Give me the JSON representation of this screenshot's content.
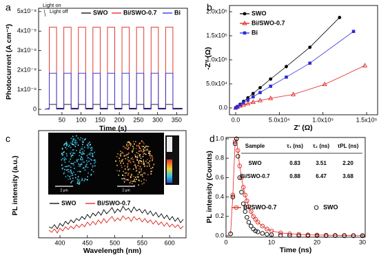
{
  "chart_data": [
    {
      "type": "line",
      "label": "a",
      "xlabel": "Time (s)",
      "ylabel": "Photocurrent (A cm⁻²)",
      "annotations": [
        "Light on",
        "Light off"
      ],
      "x": [
        6,
        17,
        17,
        36,
        36,
        55,
        55,
        74,
        74,
        93,
        93,
        112,
        112,
        131,
        131,
        150,
        150,
        169,
        169,
        188,
        188,
        207,
        207,
        226,
        226,
        245,
        245,
        264,
        264,
        283,
        283,
        302,
        302,
        321,
        321,
        340,
        340,
        365
      ],
      "series": [
        {
          "name": "SWO",
          "color": "#000000",
          "values": [
            0,
            5e-10,
            2.5e-09,
            2.5e-09,
            5e-10,
            5e-10,
            2.5e-09,
            2.5e-09,
            5e-10,
            5e-10,
            2.5e-09,
            2.5e-09,
            5e-10,
            5e-10,
            2.5e-09,
            2.5e-09,
            5e-10,
            5e-10,
            2.5e-09,
            2.5e-09,
            5e-10,
            5e-10,
            2.5e-09,
            2.5e-09,
            5e-10,
            5e-10,
            2.5e-09,
            2.5e-09,
            5e-10,
            5e-10,
            2.5e-09,
            2.5e-09,
            5e-10,
            5e-10,
            2.5e-09,
            2.5e-09,
            5e-10,
            5e-10
          ]
        },
        {
          "name": "Bi/SWO-0.7",
          "color": "#e0201b",
          "values": [
            2e-10,
            2e-10,
            4.2e-08,
            4.2e-08,
            2e-10,
            2e-10,
            4.2e-08,
            4.2e-08,
            2e-10,
            2e-10,
            4.2e-08,
            4.2e-08,
            2e-10,
            2e-10,
            4.2e-08,
            4.2e-08,
            2e-10,
            2e-10,
            4.2e-08,
            4.2e-08,
            2e-10,
            2e-10,
            4.2e-08,
            4.2e-08,
            2e-10,
            2e-10,
            4.2e-08,
            4.2e-08,
            2e-10,
            2e-10,
            4.2e-08,
            4.2e-08,
            2e-10,
            2e-10,
            4.2e-08,
            4.2e-08,
            2e-10,
            2e-10
          ]
        },
        {
          "name": "Bi",
          "color": "#2b2bd9",
          "values": [
            1e-10,
            1e-10,
            1.85e-08,
            1.85e-08,
            1e-10,
            1e-10,
            1.85e-08,
            1.85e-08,
            1e-10,
            1e-10,
            1.85e-08,
            1.85e-08,
            1e-10,
            1e-10,
            1.85e-08,
            1.85e-08,
            1e-10,
            1e-10,
            1.85e-08,
            1.85e-08,
            1e-10,
            1e-10,
            1.85e-08,
            1.85e-08,
            1e-10,
            1e-10,
            1.85e-08,
            1.85e-08,
            1e-10,
            1e-10,
            1.85e-08,
            1.85e-08,
            1e-10,
            1e-10,
            1.85e-08,
            1.85e-08,
            1e-10,
            1e-10
          ]
        }
      ],
      "xlim": [
        -11,
        378
      ],
      "xticks": [
        50,
        100,
        150,
        200,
        250,
        300,
        350
      ],
      "ylim": [
        -2.8e-09,
        5.17e-08
      ],
      "yticks": [
        0,
        {
          "value": 1e-08,
          "label": "1x10⁻⁸"
        },
        {
          "value": 2e-08,
          "label": "2x10⁻⁸"
        },
        {
          "value": 3e-08,
          "label": "3x10⁻⁸"
        },
        {
          "value": 4e-08,
          "label": "4x10⁻⁸"
        },
        {
          "value": 5e-08,
          "label": "5x10⁻⁸"
        }
      ]
    },
    {
      "type": "scatter",
      "label": "b",
      "xlabel": "Z' (Ω)",
      "ylabel": "-Z'' (Ω)",
      "series": [
        {
          "name": "SWO",
          "color": "#000000",
          "marker": "circle",
          "x": [
            0,
            2000,
            5000,
            9000,
            14000,
            20000,
            28000,
            40000,
            58000,
            85000,
            119000
          ],
          "values": [
            0,
            3000,
            7500,
            13500,
            21000,
            30000,
            42000,
            60000,
            86000,
            126000,
            188000
          ]
        },
        {
          "name": "Bi/SWO-0.7",
          "color": "#e0201b",
          "marker": "triangle",
          "x": [
            0,
            2000,
            5000,
            9000,
            14000,
            20000,
            28000,
            40000,
            66000,
            102000,
            148000
          ],
          "values": [
            0,
            2000,
            4000,
            6500,
            9000,
            12000,
            15500,
            20000,
            28000,
            49000,
            88000
          ]
        },
        {
          "name": "Bi",
          "color": "#2b2bd9",
          "marker": "square",
          "x": [
            0,
            2000,
            5000,
            9000,
            14000,
            20000,
            28000,
            40000,
            58000,
            85000,
            135000
          ],
          "values": [
            0,
            2500,
            6000,
            11000,
            16500,
            23000,
            32000,
            45000,
            64000,
            93000,
            159000
          ]
        }
      ],
      "xlim": [
        -7100,
        162600
      ],
      "xticks": [
        {
          "value": 0,
          "label": "0.0"
        },
        {
          "value": 50000,
          "label": "5.0x10⁴"
        },
        {
          "value": 100000,
          "label": "1.0x10⁵"
        },
        {
          "value": 150000,
          "label": "1.5x10⁵"
        }
      ],
      "ylim": [
        -14300,
        212900
      ],
      "yticks": [
        {
          "value": 0,
          "label": "0.0"
        },
        {
          "value": 50000,
          "label": "5.0x10⁴"
        },
        {
          "value": 100000,
          "label": "1.0x10⁵"
        },
        {
          "value": 150000,
          "label": "1.5x10⁵"
        },
        {
          "value": 200000,
          "label": "2.0x10⁵"
        }
      ]
    },
    {
      "type": "line",
      "label": "c",
      "xlabel": "Wavelength (nm)",
      "ylabel": "PL intensity (a.u.)",
      "inset_labels": [
        "2 μm",
        "2 μm"
      ],
      "x": [
        380,
        385,
        390,
        395,
        400,
        405,
        410,
        415,
        420,
        425,
        430,
        435,
        440,
        445,
        450,
        455,
        460,
        465,
        470,
        475,
        480,
        485,
        490,
        495,
        500,
        505,
        510,
        515,
        520,
        525,
        530,
        535,
        540,
        545,
        550,
        555,
        560,
        565,
        570,
        575,
        580,
        585,
        590,
        595,
        600,
        605,
        610,
        615,
        620,
        625
      ],
      "series": [
        {
          "name": "SWO",
          "color": "#000000",
          "values": [
            0.3,
            0.28,
            0.33,
            0.27,
            0.35,
            0.31,
            0.38,
            0.34,
            0.4,
            0.36,
            0.42,
            0.39,
            0.45,
            0.41,
            0.48,
            0.43,
            0.5,
            0.46,
            0.52,
            0.47,
            0.55,
            0.49,
            0.53,
            0.58,
            0.5,
            0.56,
            0.52,
            0.6,
            0.54,
            0.57,
            0.51,
            0.59,
            0.53,
            0.56,
            0.5,
            0.55,
            0.48,
            0.53,
            0.46,
            0.51,
            0.44,
            0.49,
            0.42,
            0.47,
            0.4,
            0.45,
            0.38,
            0.43,
            0.36,
            0.41
          ]
        },
        {
          "name": "Bi/SWO-0.7",
          "color": "#e0201b",
          "values": [
            0.25,
            0.22,
            0.27,
            0.21,
            0.28,
            0.24,
            0.3,
            0.26,
            0.31,
            0.27,
            0.33,
            0.29,
            0.34,
            0.3,
            0.37,
            0.32,
            0.38,
            0.33,
            0.4,
            0.35,
            0.42,
            0.36,
            0.41,
            0.45,
            0.38,
            0.43,
            0.39,
            0.46,
            0.41,
            0.44,
            0.38,
            0.45,
            0.4,
            0.43,
            0.37,
            0.42,
            0.36,
            0.4,
            0.34,
            0.39,
            0.33,
            0.37,
            0.31,
            0.36,
            0.3,
            0.34,
            0.29,
            0.33,
            0.27,
            0.31
          ]
        }
      ],
      "xlim": [
        361,
        630
      ],
      "xticks": [
        400,
        450,
        500,
        550,
        600
      ],
      "ylim": [
        0.14,
        1.7
      ]
    },
    {
      "type": "scatter",
      "label": "d",
      "xlabel": "Time (ns)",
      "ylabel": "PL intensity (Counts)",
      "x": [
        1.0,
        1.5,
        2.0,
        2.3,
        2.6,
        3.0,
        3.4,
        3.8,
        4.2,
        4.6,
        5.0,
        5.5,
        6,
        6.5,
        7,
        8,
        9,
        10,
        12,
        14,
        16,
        18,
        20,
        22,
        24,
        26,
        28,
        30
      ],
      "series": [
        {
          "name": "Bi/SWO-0.7",
          "color": "#e0201b",
          "marker": "open-circle",
          "line": true,
          "values": [
            0.02,
            0.42,
            0.97,
            1.0,
            0.88,
            0.72,
            0.6,
            0.5,
            0.42,
            0.36,
            0.3,
            0.25,
            0.2,
            0.17,
            0.14,
            0.1,
            0.07,
            0.05,
            0.03,
            0.02,
            0.015,
            0.01,
            0.008,
            0.006,
            0.005,
            0.004,
            0.003,
            0.003
          ]
        },
        {
          "name": "SWO",
          "color": "#000000",
          "marker": "open-circle",
          "values": [
            0.02,
            0.4,
            0.95,
            1.0,
            0.82,
            0.6,
            0.45,
            0.33,
            0.25,
            0.19,
            0.14,
            0.1,
            0.07,
            0.05,
            0.04,
            0.025,
            0.015,
            0.01,
            0.005,
            0.003,
            0.002,
            0.002,
            0.001,
            0.001,
            0.001,
            0,
            0,
            0
          ]
        }
      ],
      "table": {
        "header": [
          "Sample",
          "τ₁ (ns)",
          "τ₂ (ns)",
          "τPL (ns)"
        ],
        "rows": [
          [
            "SWO",
            "0.83",
            "3.51",
            "2.20"
          ],
          [
            "Bi/SWO-0.7",
            "0.88",
            "6.47",
            "3.68"
          ]
        ]
      },
      "xlim": [
        0,
        30.6
      ],
      "xticks": [
        0,
        10,
        20,
        30
      ],
      "ylim": [
        -0.014,
        1.014
      ],
      "yticks": [
        {
          "value": 0,
          "label": "0.0"
        },
        {
          "value": 0.2,
          "label": "0.2"
        },
        {
          "value": 0.4,
          "label": "0.4"
        },
        {
          "value": 0.6,
          "label": "0.6"
        },
        {
          "value": 0.8,
          "label": "0.8"
        },
        {
          "value": 1.0,
          "label": "1.0"
        }
      ]
    }
  ]
}
